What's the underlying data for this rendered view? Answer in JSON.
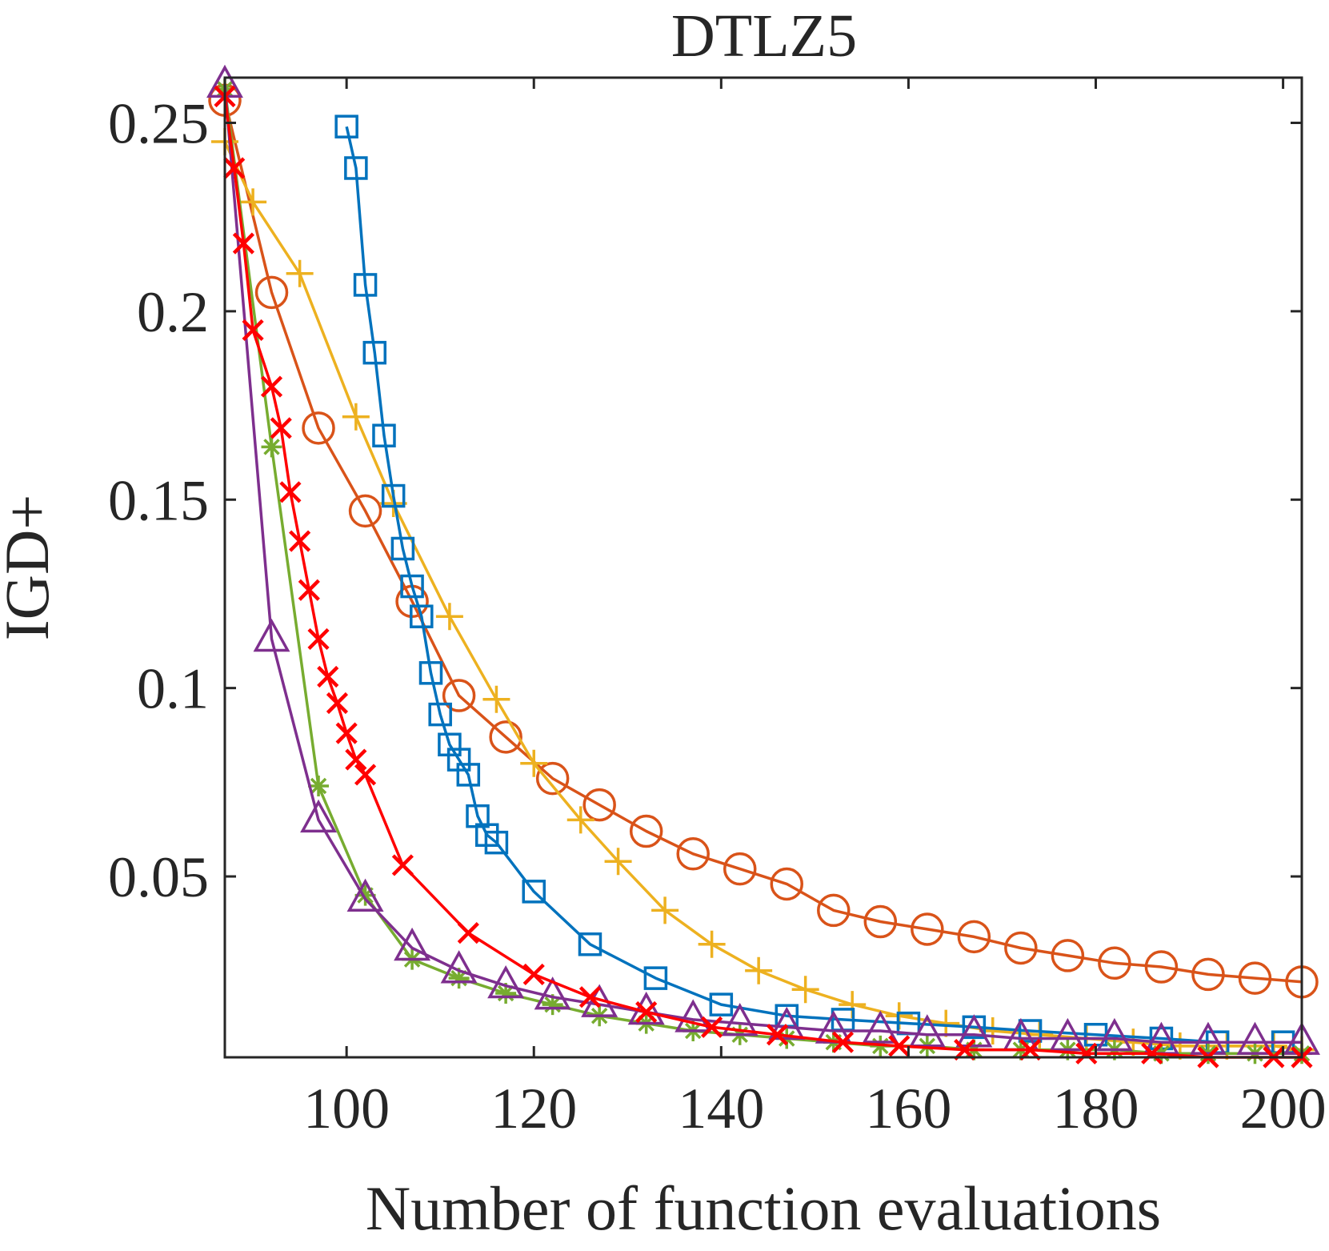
{
  "chart_data": {
    "type": "line",
    "title": "DTLZ5",
    "xlabel": "Number of function evaluations",
    "ylabel": "IGD+",
    "xlim": [
      87,
      202
    ],
    "ylim": [
      0.002,
      0.262
    ],
    "xticks": [
      100,
      120,
      140,
      160,
      180,
      200
    ],
    "xtick_labels": [
      "100",
      "120",
      "140",
      "160",
      "180",
      "200"
    ],
    "yticks": [
      0.05,
      0.1,
      0.15,
      0.2,
      0.25
    ],
    "ytick_labels": [
      "0.05",
      "0.1",
      "0.15",
      "0.2",
      "0.25"
    ],
    "grid": false,
    "legend": "none",
    "series": [
      {
        "color": "#D95319",
        "marker": "circle",
        "points": [
          [
            87,
            0.256
          ],
          [
            92,
            0.205
          ],
          [
            97,
            0.169
          ],
          [
            102,
            0.147
          ],
          [
            107,
            0.123
          ],
          [
            112,
            0.098
          ],
          [
            117,
            0.087
          ],
          [
            122,
            0.076
          ],
          [
            127,
            0.069
          ],
          [
            132,
            0.062
          ],
          [
            137,
            0.056
          ],
          [
            142,
            0.052
          ],
          [
            147,
            0.048
          ],
          [
            152,
            0.041
          ],
          [
            157,
            0.038
          ],
          [
            162,
            0.036
          ],
          [
            167,
            0.034
          ],
          [
            172,
            0.031
          ],
          [
            177,
            0.029
          ],
          [
            182,
            0.027
          ],
          [
            187,
            0.026
          ],
          [
            192,
            0.024
          ],
          [
            197,
            0.023
          ],
          [
            202,
            0.022
          ]
        ]
      },
      {
        "color": "#EDB120",
        "marker": "plus",
        "points": [
          [
            87,
            0.245
          ],
          [
            90,
            0.229
          ],
          [
            95,
            0.21
          ],
          [
            101,
            0.172
          ],
          [
            105,
            0.149
          ],
          [
            111,
            0.119
          ],
          [
            116,
            0.097
          ],
          [
            120,
            0.08
          ],
          [
            125,
            0.065
          ],
          [
            129,
            0.054
          ],
          [
            134,
            0.041
          ],
          [
            139,
            0.032
          ],
          [
            144,
            0.025
          ],
          [
            149,
            0.02
          ],
          [
            154,
            0.016
          ],
          [
            159,
            0.013
          ],
          [
            164,
            0.011
          ],
          [
            169,
            0.009
          ],
          [
            174,
            0.008
          ],
          [
            179,
            0.007
          ],
          [
            184,
            0.006
          ],
          [
            189,
            0.005
          ],
          [
            194,
            0.005
          ],
          [
            199,
            0.005
          ],
          [
            202,
            0.004
          ]
        ]
      },
      {
        "color": "#0072BD",
        "marker": "square",
        "points": [
          [
            100,
            0.249
          ],
          [
            101,
            0.238
          ],
          [
            102,
            0.207
          ],
          [
            103,
            0.189
          ],
          [
            104,
            0.167
          ],
          [
            105,
            0.151
          ],
          [
            106,
            0.137
          ],
          [
            107,
            0.127
          ],
          [
            108,
            0.119
          ],
          [
            109,
            0.104
          ],
          [
            110,
            0.093
          ],
          [
            111,
            0.085
          ],
          [
            112,
            0.081
          ],
          [
            113,
            0.077
          ],
          [
            114,
            0.066
          ],
          [
            115,
            0.061
          ],
          [
            116,
            0.059
          ],
          [
            120,
            0.046
          ],
          [
            126,
            0.032
          ],
          [
            133,
            0.023
          ],
          [
            140,
            0.016
          ],
          [
            147,
            0.013
          ],
          [
            153,
            0.012
          ],
          [
            160,
            0.011
          ],
          [
            167,
            0.01
          ],
          [
            173,
            0.009
          ],
          [
            180,
            0.008
          ],
          [
            187,
            0.007
          ],
          [
            193,
            0.006
          ],
          [
            200,
            0.006
          ]
        ]
      },
      {
        "color": "#77AC30",
        "marker": "asterisk",
        "points": [
          [
            87,
            0.259
          ],
          [
            92,
            0.164
          ],
          [
            97,
            0.074
          ],
          [
            102,
            0.045
          ],
          [
            107,
            0.028
          ],
          [
            112,
            0.023
          ],
          [
            117,
            0.019
          ],
          [
            122,
            0.016
          ],
          [
            127,
            0.013
          ],
          [
            132,
            0.011
          ],
          [
            137,
            0.009
          ],
          [
            142,
            0.008
          ],
          [
            147,
            0.007
          ],
          [
            152,
            0.006
          ],
          [
            157,
            0.005
          ],
          [
            162,
            0.005
          ],
          [
            167,
            0.004
          ],
          [
            172,
            0.004
          ],
          [
            177,
            0.004
          ],
          [
            182,
            0.004
          ],
          [
            187,
            0.003
          ],
          [
            192,
            0.003
          ],
          [
            197,
            0.003
          ],
          [
            202,
            0.003
          ]
        ]
      },
      {
        "color": "#7E2F8E",
        "marker": "triangle",
        "points": [
          [
            87,
            0.26
          ],
          [
            92,
            0.113
          ],
          [
            97,
            0.065
          ],
          [
            102,
            0.044
          ],
          [
            107,
            0.031
          ],
          [
            112,
            0.025
          ],
          [
            117,
            0.021
          ],
          [
            122,
            0.018
          ],
          [
            127,
            0.016
          ],
          [
            132,
            0.014
          ],
          [
            137,
            0.012
          ],
          [
            142,
            0.011
          ],
          [
            147,
            0.01
          ],
          [
            152,
            0.009
          ],
          [
            157,
            0.009
          ],
          [
            162,
            0.008
          ],
          [
            167,
            0.008
          ],
          [
            172,
            0.007
          ],
          [
            177,
            0.007
          ],
          [
            182,
            0.007
          ],
          [
            187,
            0.006
          ],
          [
            192,
            0.006
          ],
          [
            197,
            0.006
          ],
          [
            202,
            0.006
          ]
        ]
      },
      {
        "color": "#FF0000",
        "marker": "x",
        "points": [
          [
            87,
            0.257
          ],
          [
            88,
            0.238
          ],
          [
            89,
            0.218
          ],
          [
            90,
            0.195
          ],
          [
            92,
            0.18
          ],
          [
            93,
            0.169
          ],
          [
            94,
            0.152
          ],
          [
            95,
            0.139
          ],
          [
            96,
            0.126
          ],
          [
            97,
            0.113
          ],
          [
            98,
            0.103
          ],
          [
            99,
            0.096
          ],
          [
            100,
            0.088
          ],
          [
            101,
            0.081
          ],
          [
            102,
            0.077
          ],
          [
            106,
            0.053
          ],
          [
            113,
            0.035
          ],
          [
            120,
            0.024
          ],
          [
            126,
            0.018
          ],
          [
            132,
            0.014
          ],
          [
            139,
            0.01
          ],
          [
            146,
            0.008
          ],
          [
            153,
            0.006
          ],
          [
            159,
            0.005
          ],
          [
            166,
            0.004
          ],
          [
            173,
            0.004
          ],
          [
            179,
            0.003
          ],
          [
            186,
            0.003
          ],
          [
            192,
            0.002
          ],
          [
            199,
            0.002
          ],
          [
            202,
            0.002
          ]
        ]
      }
    ]
  }
}
